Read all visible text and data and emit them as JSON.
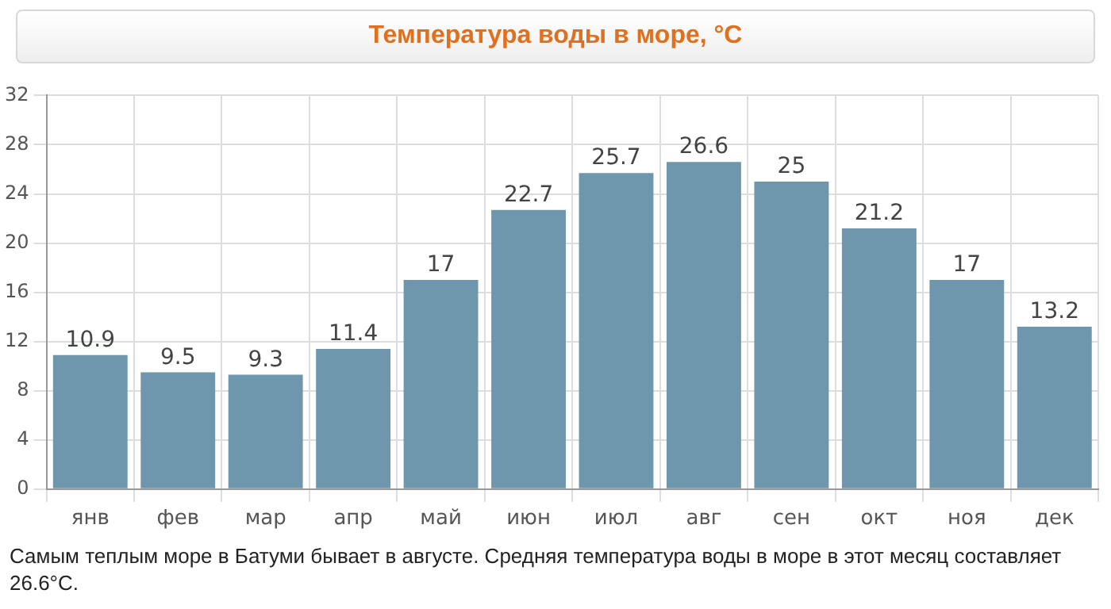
{
  "chart_data": {
    "type": "bar",
    "title": "Температура воды в море, °C",
    "categories": [
      "янв",
      "фев",
      "мар",
      "апр",
      "май",
      "июн",
      "июл",
      "авг",
      "сен",
      "окт",
      "ноя",
      "дек"
    ],
    "values": [
      10.9,
      9.5,
      9.3,
      11.4,
      17,
      22.7,
      25.7,
      26.6,
      25,
      21.2,
      17,
      13.2
    ],
    "color": "#6e97ad",
    "ylim": [
      0,
      32
    ],
    "yticks": [
      0,
      4,
      8,
      12,
      16,
      20,
      24,
      28,
      32
    ],
    "grid": true,
    "data_labels": true,
    "annotations": [
      "Самым теплым море в Батуми бывает в августе. Средняя температура воды в море в этот месяц составляет 26.6°C."
    ]
  }
}
